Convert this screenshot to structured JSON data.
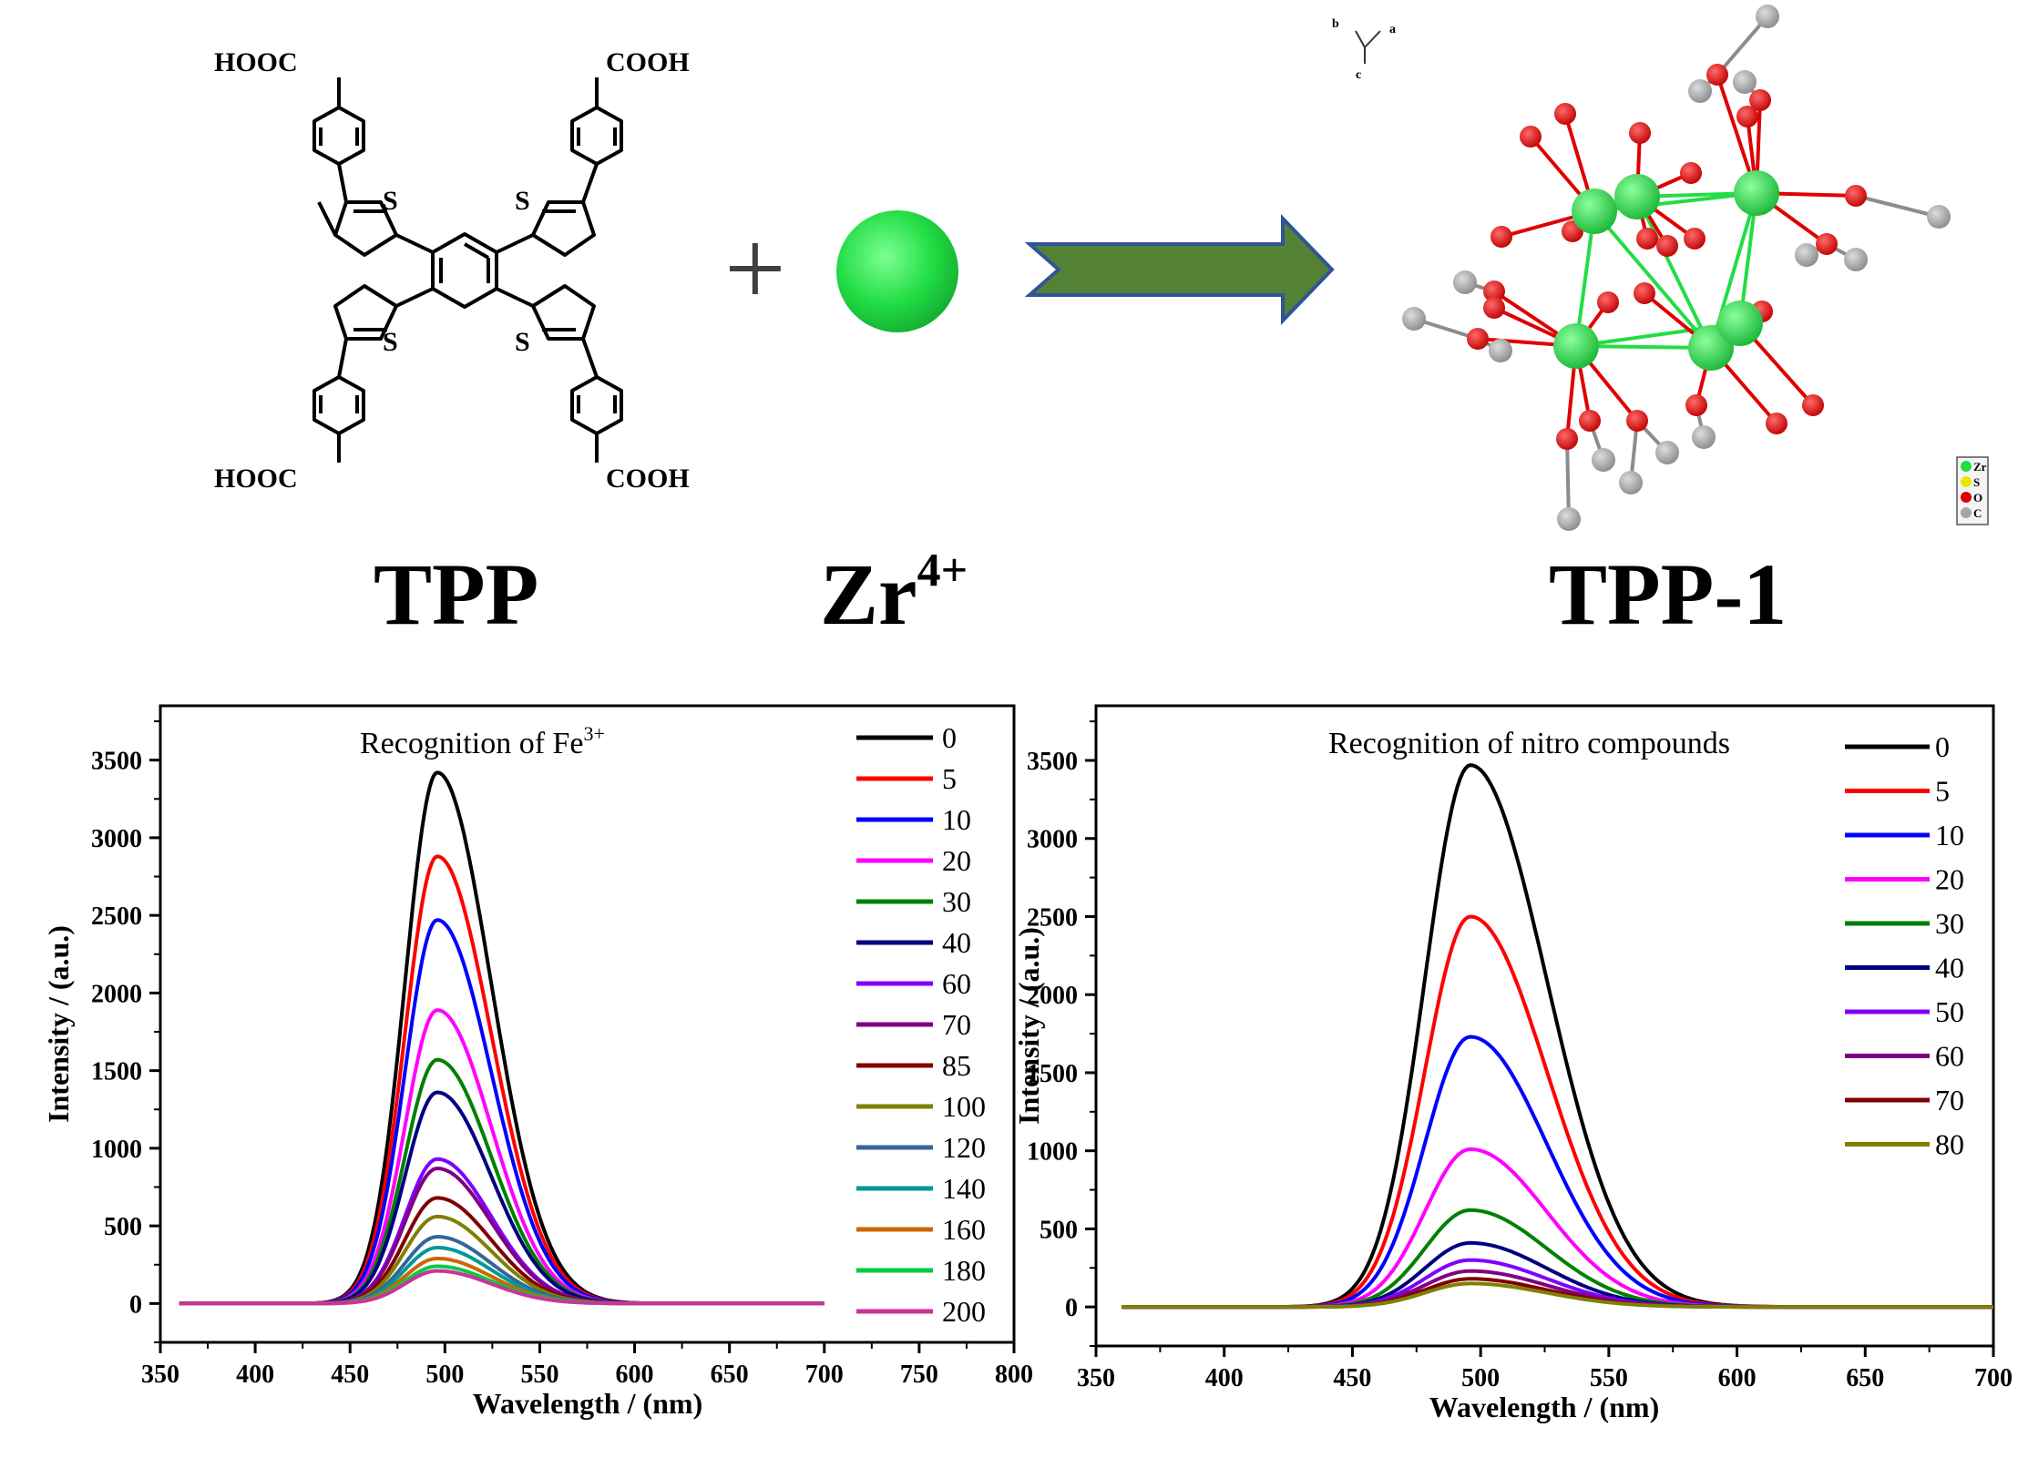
{
  "scheme": {
    "reactant1_label": "TPP",
    "reactant2_label": "Zr",
    "reactant2_charge": "4+",
    "product_label": "TPP-1",
    "plus": "+",
    "carboxyl_left": "HOOC",
    "carboxyl_right": "COOH",
    "sulfur": "S",
    "axes_labels": [
      "b",
      "a",
      "c"
    ],
    "atom_legend": [
      "Zr",
      "S",
      "O",
      "C"
    ]
  },
  "colors": {
    "zr": "#22dd44",
    "oxygen": "#e00000",
    "carbon": "#a6a6a6",
    "sulfur": "#e8e800",
    "arrow_fill": "#548235",
    "arrow_stroke": "#2f5597"
  },
  "chart_data": [
    {
      "type": "line",
      "title": "Recognition of Fe",
      "title_superscript": "3+",
      "xlabel": "Wavelength / (nm)",
      "ylabel": "Intensity / (a.u.)",
      "xlim": [
        350,
        800
      ],
      "ylim": [
        -250,
        3850
      ],
      "xticks": [
        350,
        400,
        450,
        500,
        550,
        600,
        650,
        700,
        750,
        800
      ],
      "yticks": [
        0,
        500,
        1000,
        1500,
        2000,
        2500,
        3000,
        3500
      ],
      "x_range": [
        360,
        700
      ],
      "peak_center": 496,
      "rise_width": 24,
      "fall_width": 40,
      "legend_position": "top-right",
      "series": [
        {
          "name": "0",
          "peak": 3420,
          "color": "#000000"
        },
        {
          "name": "5",
          "peak": 2880,
          "color": "#ff0000"
        },
        {
          "name": "10",
          "peak": 2470,
          "color": "#0000ff"
        },
        {
          "name": "20",
          "peak": 1890,
          "color": "#ff00ff"
        },
        {
          "name": "30",
          "peak": 1570,
          "color": "#008000"
        },
        {
          "name": "40",
          "peak": 1360,
          "color": "#000080"
        },
        {
          "name": "60",
          "peak": 930,
          "color": "#8000ff"
        },
        {
          "name": "70",
          "peak": 870,
          "color": "#800080"
        },
        {
          "name": "85",
          "peak": 680,
          "color": "#800000"
        },
        {
          "name": "100",
          "peak": 560,
          "color": "#808000"
        },
        {
          "name": "120",
          "peak": 430,
          "color": "#336699"
        },
        {
          "name": "140",
          "peak": 360,
          "color": "#009999"
        },
        {
          "name": "160",
          "peak": 290,
          "color": "#cc6600"
        },
        {
          "name": "180",
          "peak": 240,
          "color": "#00cc44"
        },
        {
          "name": "200",
          "peak": 210,
          "color": "#cc3399"
        }
      ]
    },
    {
      "type": "line",
      "title": "Recognition of nitro compounds",
      "xlabel": "Wavelength / (nm)",
      "ylabel": "Intensity / (a.u.)",
      "xlim": [
        350,
        700
      ],
      "ylim": [
        -250,
        3850
      ],
      "xticks": [
        350,
        400,
        450,
        500,
        550,
        600,
        650,
        700
      ],
      "yticks": [
        0,
        500,
        1000,
        1500,
        2000,
        2500,
        3000,
        3500
      ],
      "x_range": [
        360,
        700
      ],
      "peak_center": 496,
      "rise_width": 25,
      "fall_width": 42,
      "legend_position": "top-right",
      "series": [
        {
          "name": "0",
          "peak": 3470,
          "color": "#000000"
        },
        {
          "name": "5",
          "peak": 2500,
          "color": "#ff0000"
        },
        {
          "name": "10",
          "peak": 1730,
          "color": "#0000ff"
        },
        {
          "name": "20",
          "peak": 1010,
          "color": "#ff00ff"
        },
        {
          "name": "30",
          "peak": 620,
          "color": "#008000"
        },
        {
          "name": "40",
          "peak": 410,
          "color": "#000080"
        },
        {
          "name": "50",
          "peak": 300,
          "color": "#8000ff"
        },
        {
          "name": "60",
          "peak": 230,
          "color": "#800080"
        },
        {
          "name": "70",
          "peak": 180,
          "color": "#800000"
        },
        {
          "name": "80",
          "peak": 150,
          "color": "#808000"
        }
      ]
    }
  ]
}
